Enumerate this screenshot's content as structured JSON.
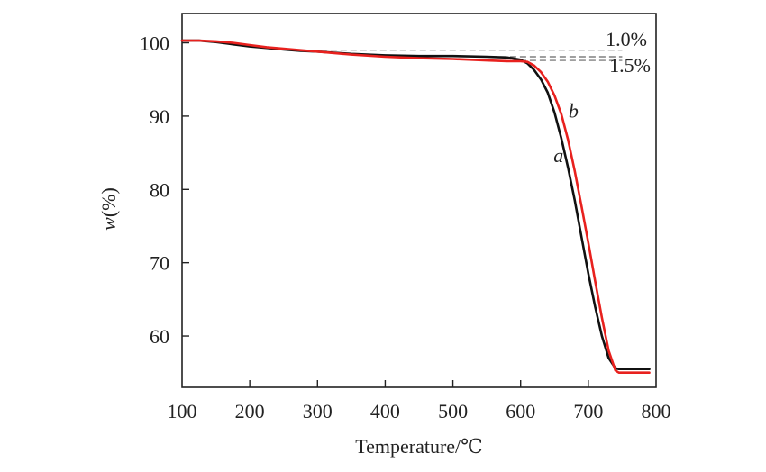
{
  "chart_data": {
    "type": "line",
    "title": "",
    "xlabel": "Temperature/℃",
    "ylabel_var": "w",
    "ylabel_unit": "(%)",
    "xlim": [
      100,
      800
    ],
    "ylim": [
      53,
      104
    ],
    "xticks": [
      100,
      200,
      300,
      400,
      500,
      600,
      700,
      800
    ],
    "yticks": [
      60,
      70,
      80,
      90,
      100
    ],
    "xtick_labels": [
      "100",
      "200",
      "300",
      "400",
      "500",
      "600",
      "700",
      "800"
    ],
    "ytick_labels": [
      "60",
      "70",
      "80",
      "90",
      "100"
    ],
    "series": [
      {
        "name": "a",
        "color": "#111111",
        "x": [
          100,
          125,
          150,
          175,
          200,
          225,
          250,
          275,
          300,
          350,
          400,
          450,
          500,
          550,
          580,
          600,
          610,
          620,
          630,
          640,
          650,
          660,
          670,
          680,
          690,
          700,
          710,
          720,
          730,
          740,
          745,
          750,
          790
        ],
        "y": [
          100.3,
          100.3,
          100.1,
          99.8,
          99.5,
          99.3,
          99.1,
          98.9,
          98.8,
          98.5,
          98.3,
          98.2,
          98.2,
          98.1,
          98.0,
          97.7,
          97.2,
          96.3,
          95.0,
          93.2,
          90.5,
          87.0,
          83.0,
          78.5,
          73.5,
          68.5,
          64.0,
          60.0,
          57.0,
          55.6,
          55.5,
          55.5,
          55.5
        ]
      },
      {
        "name": "b",
        "color": "#e8211e",
        "x": [
          100,
          125,
          150,
          175,
          200,
          225,
          250,
          275,
          300,
          350,
          400,
          450,
          500,
          550,
          580,
          600,
          610,
          620,
          630,
          640,
          650,
          660,
          670,
          680,
          690,
          700,
          710,
          720,
          730,
          740,
          745,
          750,
          790
        ],
        "y": [
          100.3,
          100.3,
          100.2,
          100.0,
          99.7,
          99.4,
          99.2,
          99.0,
          98.8,
          98.4,
          98.1,
          97.9,
          97.8,
          97.6,
          97.5,
          97.5,
          97.4,
          96.9,
          96.0,
          94.7,
          92.8,
          90.3,
          86.8,
          82.5,
          77.7,
          72.7,
          67.5,
          62.5,
          58.0,
          55.3,
          55.0,
          55.0,
          55.0
        ]
      }
    ],
    "reference_lines": [
      {
        "y": 99.0,
        "x_start": 290,
        "x_end": 750,
        "label": "1.0%"
      },
      {
        "y": 98.1,
        "x_start": 555,
        "x_end": 750
      },
      {
        "y": 97.6,
        "x_start": 555,
        "x_end": 750,
        "label": "1.5%"
      }
    ],
    "series_labels": [
      {
        "name": "a",
        "text": "a",
        "x": 656,
        "y": 83.7
      },
      {
        "name": "b",
        "text": "b",
        "x": 678,
        "y": 89.8
      }
    ],
    "grid": false,
    "legend": "none"
  }
}
